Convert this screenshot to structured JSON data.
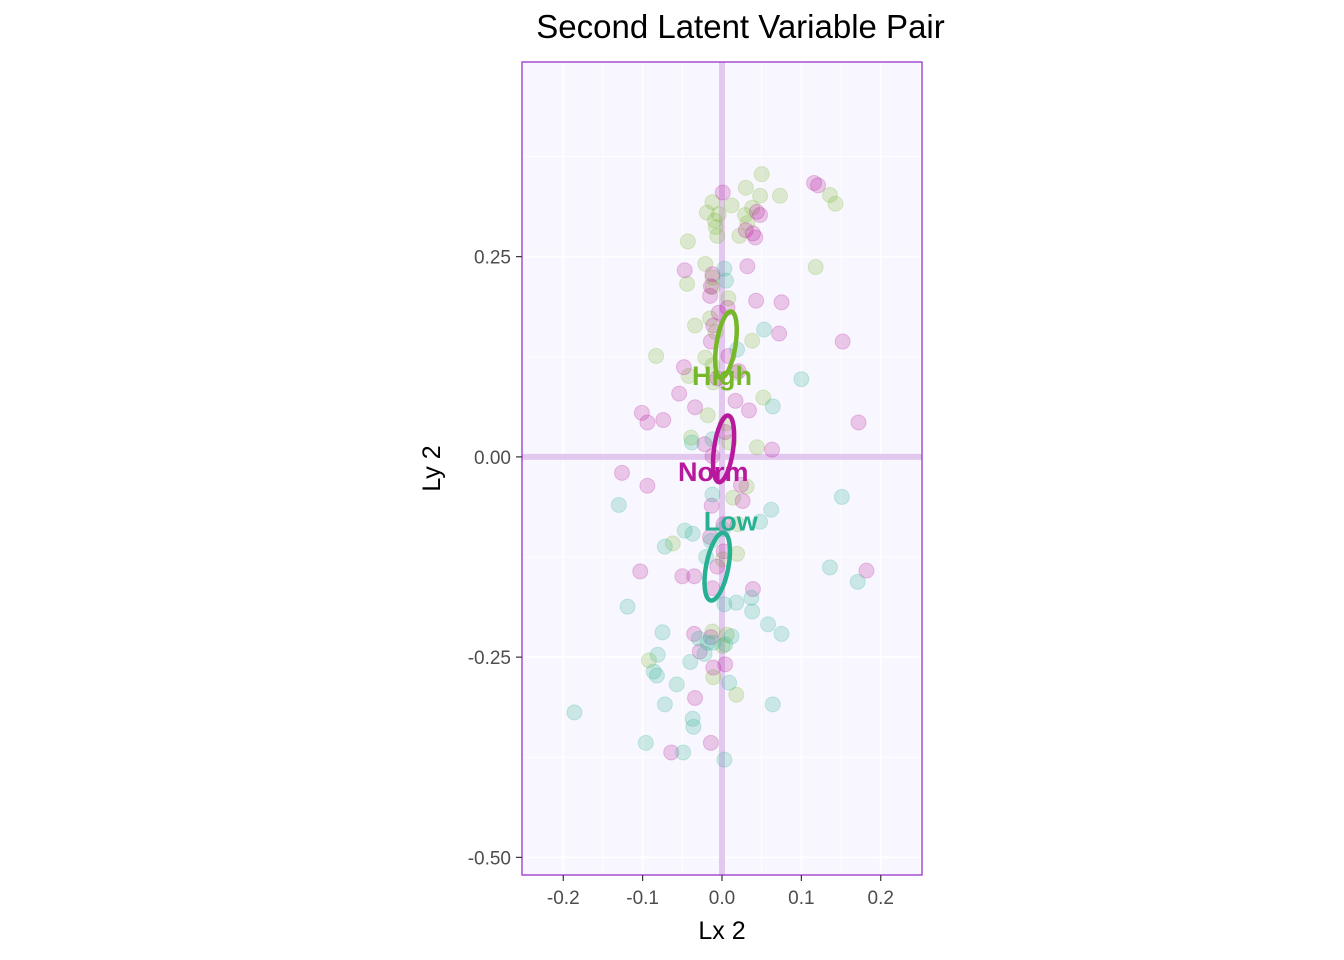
{
  "chart_data": {
    "type": "scatter",
    "title": "Second Latent Variable Pair",
    "xlabel": "Lx 2",
    "ylabel": "Ly 2",
    "xlim": [
      -0.252,
      0.252
    ],
    "ylim": [
      -0.522,
      0.493
    ],
    "x_ticks": [
      -0.2,
      -0.1,
      0.0,
      0.1,
      0.2
    ],
    "x_tick_labels": [
      "-0.2",
      "-0.1",
      "0.0",
      "0.1",
      "0.2"
    ],
    "y_ticks": [
      -0.5,
      -0.25,
      0.0,
      0.25
    ],
    "y_tick_labels": [
      "-0.50",
      "-0.25",
      "0.00",
      "0.25"
    ],
    "grid": true,
    "legend": "none",
    "colors": {
      "panel_background": "#f8f6fe",
      "panel_border": "#9933cc",
      "grid": "#ffffff",
      "origin_lines": "#e2c8ef",
      "High": "#77b82a",
      "Norm": "#b8189c",
      "Low": "#27b192"
    },
    "groups": [
      {
        "name": "High",
        "label": "High",
        "color": "#77b82a",
        "ellipse": {
          "cx": 0.005,
          "cy": 0.14,
          "rx": 0.012,
          "ry": 0.042,
          "angle_deg": 9
        },
        "points": [
          [
            0.05,
            0.353
          ],
          [
            0.03,
            0.336
          ],
          [
            0.073,
            0.326
          ],
          [
            0.048,
            0.326
          ],
          [
            0.136,
            0.327
          ],
          [
            0.143,
            0.316
          ],
          [
            -0.012,
            0.318
          ],
          [
            -0.019,
            0.305
          ],
          [
            0.012,
            0.314
          ],
          [
            0.038,
            0.311
          ],
          [
            -0.004,
            0.303
          ],
          [
            0.029,
            0.302
          ],
          [
            0.032,
            0.292
          ],
          [
            -0.043,
            0.269
          ],
          [
            -0.008,
            0.287
          ],
          [
            0.022,
            0.276
          ],
          [
            -0.006,
            0.276
          ],
          [
            -0.009,
            0.295
          ],
          [
            0.118,
            0.237
          ],
          [
            -0.021,
            0.241
          ],
          [
            -0.012,
            0.224
          ],
          [
            -0.044,
            0.216
          ],
          [
            -0.012,
            0.212
          ],
          [
            0.008,
            0.198
          ],
          [
            -0.034,
            0.164
          ],
          [
            -0.015,
            0.173
          ],
          [
            -0.008,
            0.156
          ],
          [
            0.038,
            0.145
          ],
          [
            -0.021,
            0.124
          ],
          [
            -0.083,
            0.126
          ],
          [
            -0.012,
            0.114
          ],
          [
            0.018,
            0.105
          ],
          [
            -0.042,
            0.101
          ],
          [
            -0.011,
            0.093
          ],
          [
            0.052,
            0.074
          ],
          [
            -0.018,
            0.052
          ],
          [
            0.005,
            0.042
          ],
          [
            0.044,
            0.012
          ],
          [
            -0.039,
            0.024
          ],
          [
            0.009,
            0.018
          ],
          [
            0.031,
            -0.037
          ],
          [
            0.014,
            -0.051
          ],
          [
            0.02,
            -0.084
          ],
          [
            -0.062,
            -0.108
          ],
          [
            0.019,
            -0.121
          ],
          [
            0.001,
            -0.128
          ],
          [
            -0.012,
            -0.218
          ],
          [
            0.001,
            -0.236
          ],
          [
            -0.092,
            -0.254
          ],
          [
            -0.011,
            -0.275
          ],
          [
            0.018,
            -0.297
          ],
          [
            0.006,
            -0.222
          ]
        ]
      },
      {
        "name": "Norm",
        "label": "Norm",
        "color": "#b8189c",
        "ellipse": {
          "cx": 0.002,
          "cy": 0.01,
          "rx": 0.012,
          "ry": 0.042,
          "angle_deg": 8
        },
        "points": [
          [
            0.116,
            0.342
          ],
          [
            0.121,
            0.339
          ],
          [
            0.001,
            0.33
          ],
          [
            0.044,
            0.306
          ],
          [
            0.048,
            0.302
          ],
          [
            0.03,
            0.283
          ],
          [
            0.042,
            0.274
          ],
          [
            0.039,
            0.279
          ],
          [
            -0.047,
            0.233
          ],
          [
            -0.012,
            0.228
          ],
          [
            0.032,
            0.238
          ],
          [
            -0.014,
            0.213
          ],
          [
            -0.015,
            0.201
          ],
          [
            0.043,
            0.195
          ],
          [
            0.075,
            0.193
          ],
          [
            0.007,
            0.186
          ],
          [
            -0.004,
            0.18
          ],
          [
            -0.011,
            0.164
          ],
          [
            0.072,
            0.154
          ],
          [
            0.152,
            0.144
          ],
          [
            -0.014,
            0.144
          ],
          [
            0.008,
            0.126
          ],
          [
            -0.048,
            0.112
          ],
          [
            0.021,
            0.107
          ],
          [
            -0.006,
            0.098
          ],
          [
            -0.054,
            0.079
          ],
          [
            -0.034,
            0.062
          ],
          [
            0.017,
            0.07
          ],
          [
            0.034,
            0.058
          ],
          [
            -0.101,
            0.055
          ],
          [
            -0.094,
            0.043
          ],
          [
            -0.074,
            0.046
          ],
          [
            0.172,
            0.043
          ],
          [
            0.004,
            0.031
          ],
          [
            -0.022,
            0.016
          ],
          [
            0.063,
            0.009
          ],
          [
            -0.012,
            0.001
          ],
          [
            -0.126,
            -0.02
          ],
          [
            -0.094,
            -0.036
          ],
          [
            0.024,
            -0.035
          ],
          [
            0.026,
            -0.055
          ],
          [
            -0.013,
            -0.061
          ],
          [
            0.002,
            -0.084
          ],
          [
            -0.015,
            -0.1
          ],
          [
            0.002,
            -0.118
          ],
          [
            -0.006,
            -0.137
          ],
          [
            -0.103,
            -0.143
          ],
          [
            -0.05,
            -0.149
          ],
          [
            -0.035,
            -0.149
          ],
          [
            -0.012,
            -0.164
          ],
          [
            0.039,
            -0.165
          ],
          [
            0.182,
            -0.142
          ],
          [
            -0.035,
            -0.221
          ],
          [
            -0.028,
            -0.243
          ],
          [
            -0.014,
            -0.225
          ],
          [
            0.004,
            -0.259
          ],
          [
            -0.011,
            -0.263
          ],
          [
            -0.034,
            -0.301
          ],
          [
            -0.064,
            -0.369
          ],
          [
            -0.014,
            -0.357
          ]
        ]
      },
      {
        "name": "Low",
        "label": "Low",
        "color": "#27b192",
        "ellipse": {
          "cx": -0.006,
          "cy": -0.137,
          "rx": 0.014,
          "ry": 0.043,
          "angle_deg": 11
        },
        "points": [
          [
            0.053,
            0.159
          ],
          [
            0.003,
            0.235
          ],
          [
            0.005,
            0.22
          ],
          [
            0.1,
            0.097
          ],
          [
            0.064,
            0.063
          ],
          [
            0.019,
            0.134
          ],
          [
            -0.038,
            0.018
          ],
          [
            -0.012,
            0.022
          ],
          [
            0.151,
            -0.05
          ],
          [
            -0.13,
            -0.06
          ],
          [
            0.062,
            -0.066
          ],
          [
            0.048,
            -0.081
          ],
          [
            -0.012,
            -0.047
          ],
          [
            -0.047,
            -0.092
          ],
          [
            -0.037,
            -0.096
          ],
          [
            -0.072,
            -0.112
          ],
          [
            -0.014,
            -0.105
          ],
          [
            0.001,
            -0.09
          ],
          [
            -0.02,
            -0.125
          ],
          [
            0.136,
            -0.138
          ],
          [
            0.171,
            -0.156
          ],
          [
            0.037,
            -0.176
          ],
          [
            0.018,
            -0.182
          ],
          [
            0.003,
            -0.184
          ],
          [
            -0.119,
            -0.187
          ],
          [
            0.038,
            -0.193
          ],
          [
            0.058,
            -0.209
          ],
          [
            -0.075,
            -0.219
          ],
          [
            0.075,
            -0.221
          ],
          [
            0.012,
            -0.224
          ],
          [
            -0.029,
            -0.227
          ],
          [
            0.004,
            -0.234
          ],
          [
            -0.018,
            -0.232
          ],
          [
            -0.081,
            -0.247
          ],
          [
            -0.011,
            -0.232
          ],
          [
            -0.04,
            -0.256
          ],
          [
            -0.086,
            -0.268
          ],
          [
            -0.022,
            -0.246
          ],
          [
            0.009,
            -0.282
          ],
          [
            -0.082,
            -0.273
          ],
          [
            -0.057,
            -0.284
          ],
          [
            -0.072,
            -0.309
          ],
          [
            0.064,
            -0.309
          ],
          [
            -0.186,
            -0.319
          ],
          [
            -0.037,
            -0.327
          ],
          [
            -0.036,
            -0.337
          ],
          [
            -0.096,
            -0.357
          ],
          [
            -0.049,
            -0.369
          ],
          [
            0.003,
            -0.378
          ]
        ]
      }
    ]
  }
}
